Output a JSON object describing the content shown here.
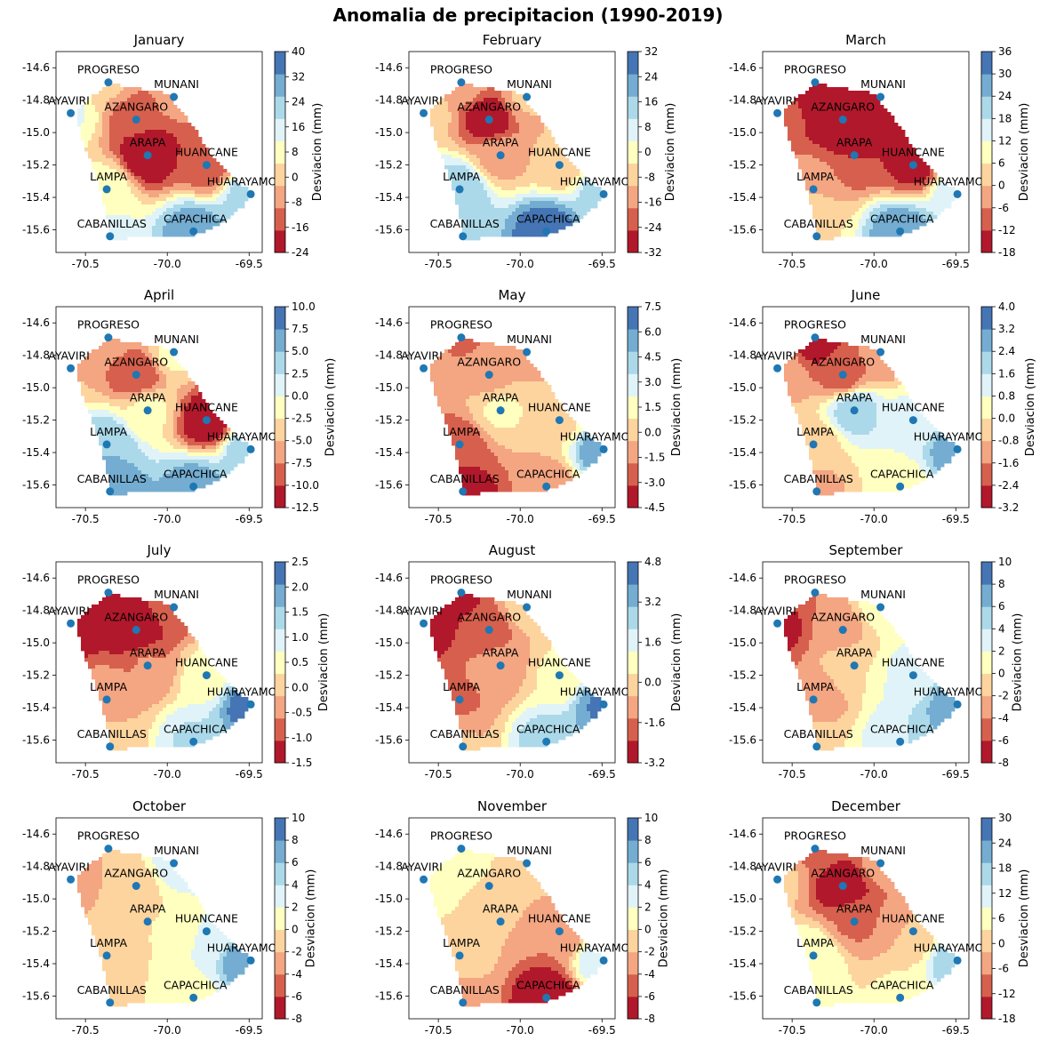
{
  "figure": {
    "title": "Anomalia de precipitacion  (1990-2019)",
    "colorbar_label": "Desviacion (mm)",
    "colormap": [
      "#b2182b",
      "#d6604d",
      "#f4a582",
      "#fdd49e",
      "#ffffbf",
      "#e0f3f8",
      "#abd9e9",
      "#74add1",
      "#4575b4"
    ],
    "station_color": "#1f77b4",
    "xlim": [
      -70.68,
      -69.42
    ],
    "ylim": [
      -15.74,
      -14.5
    ],
    "x_ticks": [
      "-70.5",
      "-70.0",
      "-69.5"
    ],
    "x_tick_values": [
      -70.5,
      -70.0,
      -69.5
    ],
    "y_ticks": [
      "-14.6",
      "-14.8",
      "-15.0",
      "-15.2",
      "-15.4",
      "-15.6"
    ],
    "y_tick_values": [
      -14.6,
      -14.8,
      -15.0,
      -15.2,
      -15.4,
      -15.6
    ]
  },
  "chart_data": [
    {
      "type": "heatmap",
      "title": "January",
      "colorbar_ticks": [
        "-24",
        "-16",
        "-8",
        "0",
        "8",
        "16",
        "24",
        "32",
        "40"
      ],
      "clim": [
        -24,
        40
      ],
      "field": [
        {
          "name": "AYAVIRI",
          "value": 12
        },
        {
          "name": "PROGRESO",
          "value": -2
        },
        {
          "name": "MUNANI",
          "value": -8
        },
        {
          "name": "AZANGARO",
          "value": -16
        },
        {
          "name": "ARAPA",
          "value": -24
        },
        {
          "name": "HUANCANE",
          "value": -14
        },
        {
          "name": "HUARAYAMO",
          "value": 24
        },
        {
          "name": "LAMPA",
          "value": 8
        },
        {
          "name": "CABANILLAS",
          "value": 14
        },
        {
          "name": "CAPACHICA",
          "value": 30
        }
      ]
    },
    {
      "type": "heatmap",
      "title": "February",
      "colorbar_ticks": [
        "-32",
        "-24",
        "-16",
        "-8",
        "0",
        "8",
        "16",
        "24",
        "32"
      ],
      "clim": [
        -32,
        32
      ],
      "field": [
        {
          "name": "AYAVIRI",
          "value": -6
        },
        {
          "name": "PROGRESO",
          "value": -14
        },
        {
          "name": "MUNANI",
          "value": -10
        },
        {
          "name": "AZANGARO",
          "value": -30
        },
        {
          "name": "ARAPA",
          "value": -14
        },
        {
          "name": "HUANCANE",
          "value": -8
        },
        {
          "name": "HUARAYAMO",
          "value": 14
        },
        {
          "name": "LAMPA",
          "value": 16
        },
        {
          "name": "CABANILLAS",
          "value": 14
        },
        {
          "name": "CAPACHICA",
          "value": 30
        }
      ]
    },
    {
      "type": "heatmap",
      "title": "March",
      "colorbar_ticks": [
        "-18",
        "-12",
        "-6",
        "0",
        "6",
        "12",
        "18",
        "24",
        "30",
        "36"
      ],
      "clim": [
        -18,
        36
      ],
      "field": [
        {
          "name": "AYAVIRI",
          "value": -10
        },
        {
          "name": "PROGRESO",
          "value": -16
        },
        {
          "name": "MUNANI",
          "value": -18
        },
        {
          "name": "AZANGARO",
          "value": -18
        },
        {
          "name": "ARAPA",
          "value": -12
        },
        {
          "name": "HUANCANE",
          "value": -14
        },
        {
          "name": "HUARAYAMO",
          "value": 18
        },
        {
          "name": "LAMPA",
          "value": 0
        },
        {
          "name": "CABANILLAS",
          "value": 6
        },
        {
          "name": "CAPACHICA",
          "value": 28
        }
      ]
    },
    {
      "type": "heatmap",
      "title": "April",
      "colorbar_ticks": [
        "-12.5",
        "-10.0",
        "-7.5",
        "-5.0",
        "-2.5",
        "0.0",
        "2.5",
        "5.0",
        "7.5",
        "10.0"
      ],
      "clim": [
        -12.5,
        10
      ],
      "field": [
        {
          "name": "AYAVIRI",
          "value": -5
        },
        {
          "name": "PROGRESO",
          "value": -6
        },
        {
          "name": "MUNANI",
          "value": -2
        },
        {
          "name": "AZANGARO",
          "value": -10
        },
        {
          "name": "ARAPA",
          "value": -2
        },
        {
          "name": "HUANCANE",
          "value": -12
        },
        {
          "name": "HUARAYAMO",
          "value": 5
        },
        {
          "name": "LAMPA",
          "value": 5
        },
        {
          "name": "CABANILLAS",
          "value": 7
        },
        {
          "name": "CAPACHICA",
          "value": 6
        }
      ]
    },
    {
      "type": "heatmap",
      "title": "May",
      "colorbar_ticks": [
        "-4.5",
        "-3.0",
        "-1.5",
        "0.0",
        "1.5",
        "3.0",
        "4.5",
        "6.0",
        "7.5"
      ],
      "clim": [
        -4.5,
        7.5
      ],
      "field": [
        {
          "name": "AYAVIRI",
          "value": -1
        },
        {
          "name": "PROGRESO",
          "value": -2
        },
        {
          "name": "MUNANI",
          "value": -1
        },
        {
          "name": "AZANGARO",
          "value": -1
        },
        {
          "name": "ARAPA",
          "value": 1
        },
        {
          "name": "HUANCANE",
          "value": 0.5
        },
        {
          "name": "HUARAYAMO",
          "value": 6
        },
        {
          "name": "LAMPA",
          "value": -2.5
        },
        {
          "name": "CABANILLAS",
          "value": -4
        },
        {
          "name": "CAPACHICA",
          "value": -1.5
        }
      ]
    },
    {
      "type": "heatmap",
      "title": "June",
      "colorbar_ticks": [
        "-3.2",
        "-2.4",
        "-1.6",
        "-0.8",
        "0.0",
        "0.8",
        "1.6",
        "2.4",
        "3.2",
        "4.0"
      ],
      "clim": [
        -3.2,
        4
      ],
      "field": [
        {
          "name": "AYAVIRI",
          "value": -1
        },
        {
          "name": "PROGRESO",
          "value": -3
        },
        {
          "name": "MUNANI",
          "value": -1.5
        },
        {
          "name": "AZANGARO",
          "value": -2
        },
        {
          "name": "ARAPA",
          "value": 2
        },
        {
          "name": "HUANCANE",
          "value": 1
        },
        {
          "name": "HUARAYAMO",
          "value": 3
        },
        {
          "name": "LAMPA",
          "value": -0.5
        },
        {
          "name": "CABANILLAS",
          "value": -1
        },
        {
          "name": "CAPACHICA",
          "value": 0.4
        }
      ]
    },
    {
      "type": "heatmap",
      "title": "July",
      "colorbar_ticks": [
        "-1.5",
        "-1.0",
        "-0.5",
        "0.0",
        "0.5",
        "1.0",
        "1.5",
        "2.0",
        "2.5"
      ],
      "clim": [
        -1.5,
        2.5
      ],
      "field": [
        {
          "name": "AYAVIRI",
          "value": -1.4
        },
        {
          "name": "PROGRESO",
          "value": -1.2
        },
        {
          "name": "MUNANI",
          "value": -0.8
        },
        {
          "name": "AZANGARO",
          "value": -1.5
        },
        {
          "name": "ARAPA",
          "value": -0.6
        },
        {
          "name": "HUANCANE",
          "value": 0.5
        },
        {
          "name": "HUARAYAMO",
          "value": 2.3
        },
        {
          "name": "LAMPA",
          "value": -0.3
        },
        {
          "name": "CABANILLAS",
          "value": 0
        },
        {
          "name": "CAPACHICA",
          "value": 1.2
        }
      ]
    },
    {
      "type": "heatmap",
      "title": "August",
      "colorbar_ticks": [
        "-3.2",
        "-1.6",
        "0.0",
        "1.6",
        "3.2",
        "4.8"
      ],
      "clim": [
        -3.2,
        4.8
      ],
      "field": [
        {
          "name": "AYAVIRI",
          "value": -3
        },
        {
          "name": "PROGRESO",
          "value": -2.5
        },
        {
          "name": "MUNANI",
          "value": 0
        },
        {
          "name": "AZANGARO",
          "value": -2
        },
        {
          "name": "ARAPA",
          "value": -1
        },
        {
          "name": "HUANCANE",
          "value": 0.5
        },
        {
          "name": "HUARAYAMO",
          "value": 4
        },
        {
          "name": "LAMPA",
          "value": -1.5
        },
        {
          "name": "CABANILLAS",
          "value": -0.5
        },
        {
          "name": "CAPACHICA",
          "value": 2.5
        }
      ]
    },
    {
      "type": "heatmap",
      "title": "September",
      "colorbar_ticks": [
        "-8",
        "-6",
        "-4",
        "-2",
        "0",
        "2",
        "4",
        "6",
        "8",
        "10"
      ],
      "clim": [
        -8,
        10
      ],
      "field": [
        {
          "name": "AYAVIRI",
          "value": -7
        },
        {
          "name": "PROGRESO",
          "value": -4
        },
        {
          "name": "MUNANI",
          "value": 1
        },
        {
          "name": "AZANGARO",
          "value": -3
        },
        {
          "name": "ARAPA",
          "value": 0
        },
        {
          "name": "HUANCANE",
          "value": 3
        },
        {
          "name": "HUARAYAMO",
          "value": 8
        },
        {
          "name": "LAMPA",
          "value": -4
        },
        {
          "name": "CABANILLAS",
          "value": 0
        },
        {
          "name": "CAPACHICA",
          "value": 4
        }
      ]
    },
    {
      "type": "heatmap",
      "title": "October",
      "colorbar_ticks": [
        "-8",
        "-6",
        "-4",
        "-2",
        "0",
        "2",
        "4",
        "6",
        "8",
        "10"
      ],
      "clim": [
        -8,
        10
      ],
      "field": [
        {
          "name": "AYAVIRI",
          "value": -3
        },
        {
          "name": "PROGRESO",
          "value": -2
        },
        {
          "name": "MUNANI",
          "value": 3
        },
        {
          "name": "AZANGARO",
          "value": -1
        },
        {
          "name": "ARAPA",
          "value": 0
        },
        {
          "name": "HUANCANE",
          "value": 2
        },
        {
          "name": "HUARAYAMO",
          "value": 8
        },
        {
          "name": "LAMPA",
          "value": -1
        },
        {
          "name": "CABANILLAS",
          "value": -0.5
        },
        {
          "name": "CAPACHICA",
          "value": 1.5
        }
      ]
    },
    {
      "type": "heatmap",
      "title": "November",
      "colorbar_ticks": [
        "-8",
        "-6",
        "-4",
        "-2",
        "0",
        "2",
        "4",
        "6",
        "8",
        "10"
      ],
      "clim": [
        -8,
        10
      ],
      "field": [
        {
          "name": "AYAVIRI",
          "value": 2
        },
        {
          "name": "PROGRESO",
          "value": 1
        },
        {
          "name": "MUNANI",
          "value": -1
        },
        {
          "name": "AZANGARO",
          "value": 0
        },
        {
          "name": "ARAPA",
          "value": -2
        },
        {
          "name": "HUANCANE",
          "value": -4
        },
        {
          "name": "HUARAYAMO",
          "value": 4
        },
        {
          "name": "LAMPA",
          "value": -1
        },
        {
          "name": "CABANILLAS",
          "value": -3
        },
        {
          "name": "CAPACHICA",
          "value": -8
        }
      ]
    },
    {
      "type": "heatmap",
      "title": "December",
      "colorbar_ticks": [
        "-18",
        "-12",
        "-6",
        "0",
        "6",
        "12",
        "18",
        "24",
        "30"
      ],
      "clim": [
        -18,
        30
      ],
      "field": [
        {
          "name": "AYAVIRI",
          "value": 0
        },
        {
          "name": "PROGRESO",
          "value": -8
        },
        {
          "name": "MUNANI",
          "value": -6
        },
        {
          "name": "AZANGARO",
          "value": -18
        },
        {
          "name": "ARAPA",
          "value": -8
        },
        {
          "name": "HUANCANE",
          "value": -2
        },
        {
          "name": "HUARAYAMO",
          "value": 18
        },
        {
          "name": "LAMPA",
          "value": 8
        },
        {
          "name": "CABANILLAS",
          "value": 4
        },
        {
          "name": "CAPACHICA",
          "value": 4
        }
      ]
    }
  ],
  "stations": [
    {
      "name": "PROGRESO",
      "lon": -70.36,
      "lat": -14.69
    },
    {
      "name": "MUNANI",
      "lon": -69.96,
      "lat": -14.78
    },
    {
      "name": "AYAVIRI",
      "lon": -70.59,
      "lat": -14.88
    },
    {
      "name": "AZANGARO",
      "lon": -70.19,
      "lat": -14.92
    },
    {
      "name": "ARAPA",
      "lon": -70.12,
      "lat": -15.14
    },
    {
      "name": "HUANCANE",
      "lon": -69.76,
      "lat": -15.2
    },
    {
      "name": "HUARAYAMO",
      "lon": -69.49,
      "lat": -15.38
    },
    {
      "name": "LAMPA",
      "lon": -70.37,
      "lat": -15.35
    },
    {
      "name": "CABANILLAS",
      "lon": -70.35,
      "lat": -15.64
    },
    {
      "name": "CAPACHICA",
      "lon": -69.84,
      "lat": -15.61
    }
  ]
}
